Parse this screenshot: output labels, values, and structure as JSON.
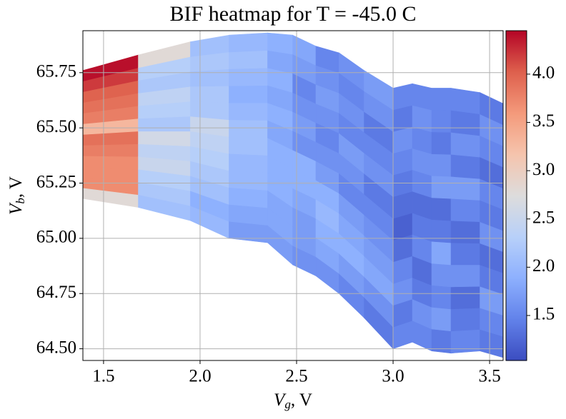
{
  "chart_data": {
    "type": "heatmap",
    "title": "BIF heatmap for T = -45.0 C",
    "xlabel": [
      "V",
      "g",
      ", V"
    ],
    "ylabel": [
      "V",
      "b",
      ", V"
    ],
    "colormap": "coolwarm",
    "grid": true,
    "x_edges": [
      1.393,
      1.68,
      1.95,
      2.15,
      2.35,
      2.48,
      2.6,
      2.72,
      2.85,
      3.0,
      3.1,
      3.2,
      3.3,
      3.45,
      3.57
    ],
    "y_bottom": [
      65.18,
      65.14,
      65.08,
      65.0,
      64.98,
      64.88,
      64.83,
      64.75,
      64.64,
      64.5,
      64.53,
      64.49,
      64.48,
      64.49,
      64.46
    ],
    "y_top": [
      65.76,
      65.83,
      65.89,
      65.92,
      65.93,
      65.92,
      65.87,
      65.84,
      65.76,
      65.68,
      65.7,
      65.68,
      65.68,
      65.66,
      65.61
    ],
    "values": [
      [
        2.8,
        3.7,
        3.7,
        3.7,
        3.8,
        3.9,
        3.3,
        3.8,
        3.9,
        4.0,
        4.2,
        4.4
      ],
      [
        2.1,
        2.2,
        2.3,
        2.5,
        2.4,
        2.6,
        2.2,
        2.3,
        2.4,
        2.2,
        2.3,
        2.8
      ],
      [
        2.0,
        1.9,
        2.1,
        2.2,
        2.3,
        2.4,
        2.5,
        2.2,
        2.2,
        2.1,
        2.2,
        2.1
      ],
      [
        1.7,
        1.8,
        1.9,
        2.0,
        2.0,
        2.1,
        2.1,
        2.0,
        1.9,
        2.0,
        2.1,
        2.0
      ],
      [
        1.7,
        1.8,
        1.8,
        1.9,
        1.9,
        1.9,
        1.8,
        1.9,
        1.8,
        1.9,
        1.8,
        1.9
      ],
      [
        1.6,
        1.7,
        1.7,
        1.8,
        1.9,
        1.9,
        1.6,
        1.7,
        1.6,
        1.5,
        1.7,
        1.8
      ],
      [
        1.6,
        1.8,
        1.9,
        2.0,
        1.9,
        1.7,
        1.6,
        1.5,
        1.6,
        1.7,
        1.6,
        1.5
      ],
      [
        1.5,
        1.7,
        1.9,
        1.8,
        1.7,
        1.5,
        1.6,
        1.7,
        1.5,
        1.6,
        1.5,
        1.6
      ],
      [
        1.4,
        1.6,
        1.8,
        1.7,
        1.6,
        1.5,
        1.4,
        1.6,
        1.5,
        1.4,
        1.6,
        1.7
      ],
      [
        1.5,
        1.4,
        1.6,
        1.5,
        1.3,
        1.2,
        1.3,
        1.4,
        1.5,
        1.6,
        1.4,
        1.5
      ],
      [
        1.5,
        1.6,
        1.4,
        1.3,
        1.5,
        1.4,
        1.3,
        1.5,
        1.6,
        1.5,
        1.6,
        1.5
      ],
      [
        1.4,
        1.7,
        1.5,
        1.6,
        1.8,
        1.4,
        1.3,
        1.7,
        1.6,
        1.4,
        1.5,
        1.5
      ],
      [
        1.5,
        1.4,
        1.3,
        1.6,
        1.4,
        1.3,
        1.5,
        1.7,
        1.4,
        1.6,
        1.4,
        1.5
      ],
      [
        1.4,
        1.5,
        1.7,
        1.4,
        1.3,
        1.6,
        1.4,
        1.5,
        1.3,
        1.5,
        1.6,
        1.4
      ]
    ],
    "xlim": [
      1.393,
      3.57
    ],
    "ylim": [
      64.447,
      65.94
    ],
    "xticks": [
      {
        "value": 1.5,
        "label": "1.5"
      },
      {
        "value": 2.0,
        "label": "2.0"
      },
      {
        "value": 2.5,
        "label": "2.5"
      },
      {
        "value": 3.0,
        "label": "3.0"
      },
      {
        "value": 3.5,
        "label": "3.5"
      }
    ],
    "yticks": [
      {
        "value": 64.5,
        "label": "64.50"
      },
      {
        "value": 64.75,
        "label": "64.75"
      },
      {
        "value": 65.0,
        "label": "65.00"
      },
      {
        "value": 65.25,
        "label": "65.25"
      },
      {
        "value": 65.5,
        "label": "65.50"
      },
      {
        "value": 65.75,
        "label": "65.75"
      }
    ],
    "clim": [
      1.034,
      4.45
    ],
    "cticks": [
      {
        "value": 1.5,
        "label": "1.5"
      },
      {
        "value": 2.0,
        "label": "2.0"
      },
      {
        "value": 2.5,
        "label": "2.5"
      },
      {
        "value": 3.0,
        "label": "3.0"
      },
      {
        "value": 3.5,
        "label": "3.5"
      },
      {
        "value": 4.0,
        "label": "4.0"
      }
    ]
  }
}
